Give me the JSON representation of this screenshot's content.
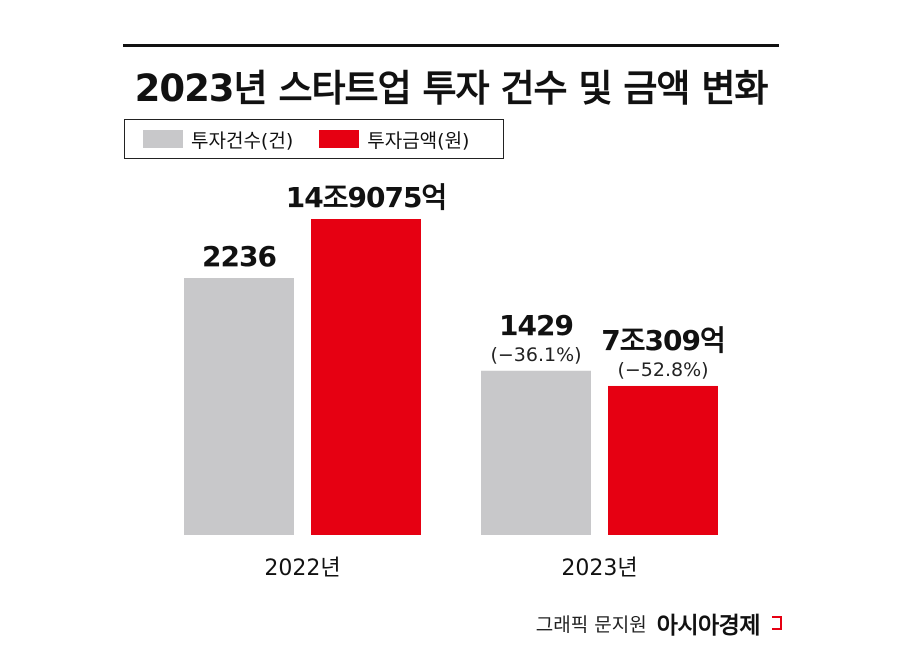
{
  "chart_data": {
    "type": "bar",
    "title": "2023년 스타트업 투자 건수 및 금액 변화",
    "categories": [
      "2022년",
      "2023년"
    ],
    "series": [
      {
        "name": "투자건수(건)",
        "color": "#c8c8ca",
        "values": [
          2236,
          1429
        ],
        "labels": [
          "2236",
          "1429"
        ],
        "sublabels": [
          "",
          "(−36.1%)"
        ]
      },
      {
        "name": "투자금액(원)",
        "color": "#e60012",
        "values": [
          14.9075,
          7.0309
        ],
        "labels": [
          "14조9075억",
          "7조309억"
        ],
        "sublabels": [
          "",
          "(−52.8%)"
        ]
      }
    ],
    "legend": "top-left",
    "grid": false
  },
  "credit": {
    "text": "그래픽 문지원",
    "brand": "아시아경제"
  }
}
